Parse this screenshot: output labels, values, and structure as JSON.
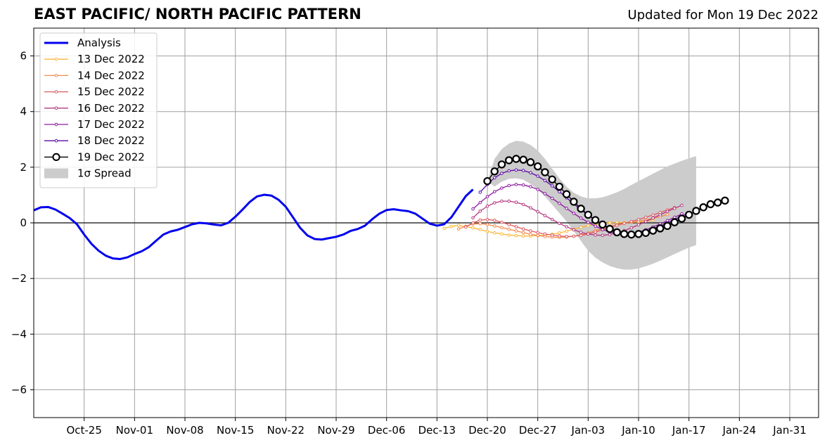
{
  "chart_data": {
    "type": "line",
    "title": "EAST PACIFIC/ NORTH PACIFIC PATTERN",
    "subtitle": "Updated for Mon 19 Dec 2022",
    "xlabel": "",
    "ylabel": "",
    "ylim": [
      -7,
      7
    ],
    "yticks": [
      6,
      4,
      2,
      0,
      -2,
      -4,
      -6
    ],
    "ytick_labels": [
      "6",
      "4",
      "2",
      "0",
      "−2",
      "−4",
      "−6"
    ],
    "xlim": [
      "2022-10-18",
      "2023-02-04"
    ],
    "xticks": [
      "2022-10-25",
      "2022-11-01",
      "2022-11-08",
      "2022-11-15",
      "2022-11-22",
      "2022-11-29",
      "2022-12-06",
      "2022-12-13",
      "2022-12-20",
      "2022-12-27",
      "2023-01-03",
      "2023-01-10",
      "2023-01-17",
      "2023-01-24",
      "2023-01-31"
    ],
    "xtick_labels": [
      "Oct-25",
      "Nov-01",
      "Nov-08",
      "Nov-15",
      "Nov-22",
      "Nov-29",
      "Dec-06",
      "Dec-13",
      "Dec-20",
      "Dec-27",
      "Jan-03",
      "Jan-10",
      "Jan-17",
      "Jan-24",
      "Jan-31"
    ],
    "grid": true,
    "legend_position": "top-left",
    "colors": {
      "analysis": "#0000ee",
      "13 Dec 2022": "#fcb634",
      "14 Dec 2022": "#f4894a",
      "15 Dec 2022": "#dc5a63",
      "16 Dec 2022": "#b43880",
      "17 Dec 2022": "#8e1aa0",
      "18 Dec 2022": "#5b07a6",
      "19 Dec 2022": "#000000",
      "spread": "#cccccc"
    },
    "analysis": {
      "name": "Analysis",
      "start": "2022-10-18",
      "values": [
        0.45,
        0.56,
        0.57,
        0.48,
        0.33,
        0.17,
        -0.05,
        -0.42,
        -0.75,
        -1.0,
        -1.18,
        -1.28,
        -1.3,
        -1.24,
        -1.12,
        -1.02,
        -0.87,
        -0.64,
        -0.42,
        -0.31,
        -0.25,
        -0.15,
        -0.05,
        0.0,
        -0.02,
        -0.06,
        -0.09,
        0.0,
        0.22,
        0.48,
        0.75,
        0.95,
        1.01,
        0.98,
        0.83,
        0.58,
        0.2,
        -0.18,
        -0.45,
        -0.58,
        -0.6,
        -0.55,
        -0.5,
        -0.42,
        -0.29,
        -0.22,
        -0.1,
        0.13,
        0.33,
        0.46,
        0.49,
        0.45,
        0.42,
        0.33,
        0.15,
        -0.03,
        -0.1,
        -0.05,
        0.2,
        0.58,
        0.96,
        1.2
      ]
    },
    "forecasts": [
      {
        "name": "13 Dec 2022",
        "start": "2022-12-14",
        "values": [
          -0.2,
          -0.13,
          -0.09,
          -0.14,
          -0.18,
          -0.24,
          -0.31,
          -0.36,
          -0.4,
          -0.44,
          -0.46,
          -0.47,
          -0.47,
          -0.46,
          -0.44,
          -0.41,
          -0.36,
          -0.3,
          -0.23,
          -0.16,
          -0.1,
          -0.05,
          -0.02,
          0.0,
          0.01,
          0.01,
          0.02,
          0.03,
          0.06,
          0.1
        ]
      },
      {
        "name": "14 Dec 2022",
        "start": "2022-12-16",
        "values": [
          -0.22,
          -0.12,
          -0.04,
          -0.03,
          -0.06,
          -0.11,
          -0.17,
          -0.23,
          -0.29,
          -0.35,
          -0.41,
          -0.45,
          -0.49,
          -0.51,
          -0.52,
          -0.51,
          -0.48,
          -0.43,
          -0.36,
          -0.28,
          -0.2,
          -0.12,
          -0.06,
          -0.02,
          0.02,
          0.06,
          0.1,
          0.16,
          0.22,
          0.3
        ]
      },
      {
        "name": "15 Dec 2022",
        "start": "2022-12-17",
        "values": [
          -0.15,
          0.0,
          0.1,
          0.12,
          0.09,
          0.02,
          -0.06,
          -0.14,
          -0.22,
          -0.29,
          -0.35,
          -0.4,
          -0.44,
          -0.47,
          -0.49,
          -0.48,
          -0.45,
          -0.4,
          -0.33,
          -0.25,
          -0.17,
          -0.09,
          -0.02,
          0.05,
          0.12,
          0.2,
          0.28,
          0.37,
          0.46,
          0.55
        ]
      },
      {
        "name": "16 Dec 2022",
        "start": "2022-12-18",
        "values": [
          0.18,
          0.42,
          0.6,
          0.72,
          0.78,
          0.78,
          0.74,
          0.66,
          0.54,
          0.4,
          0.26,
          0.12,
          -0.02,
          -0.14,
          -0.25,
          -0.34,
          -0.4,
          -0.44,
          -0.45,
          -0.42,
          -0.36,
          -0.28,
          -0.18,
          -0.07,
          0.05,
          0.17,
          0.29,
          0.41,
          0.52,
          0.63
        ]
      },
      {
        "name": "17 Dec 2022",
        "start": "2022-12-18",
        "values": [
          0.5,
          0.73,
          0.94,
          1.12,
          1.25,
          1.34,
          1.38,
          1.36,
          1.3,
          1.2,
          1.05,
          0.88,
          0.7,
          0.52,
          0.34,
          0.17,
          0.02,
          -0.12,
          -0.24,
          -0.33,
          -0.38,
          -0.4,
          -0.38,
          -0.33,
          -0.25,
          -0.15,
          -0.04,
          0.08,
          0.2,
          0.32
        ]
      },
      {
        "name": "18 Dec 2022",
        "start": "2022-12-19",
        "values": [
          1.1,
          1.38,
          1.62,
          1.78,
          1.87,
          1.9,
          1.88,
          1.8,
          1.68,
          1.52,
          1.33,
          1.12,
          0.9,
          0.68,
          0.47,
          0.27,
          0.1,
          -0.06,
          -0.19,
          -0.29,
          -0.35,
          -0.37,
          -0.35,
          -0.29,
          -0.21,
          -0.11,
          0.0,
          0.12,
          0.24,
          0.36
        ]
      },
      {
        "name": "19 Dec 2022",
        "start": "2022-12-20",
        "values": [
          1.5,
          1.85,
          2.1,
          2.25,
          2.3,
          2.27,
          2.18,
          2.03,
          1.82,
          1.56,
          1.3,
          1.03,
          0.76,
          0.51,
          0.29,
          0.1,
          -0.06,
          -0.22,
          -0.34,
          -0.4,
          -0.42,
          -0.4,
          -0.36,
          -0.28,
          -0.2,
          -0.11,
          0.02,
          0.15,
          0.29,
          0.43,
          0.56,
          0.67,
          0.73,
          0.8
        ]
      }
    ],
    "spread": {
      "name": "1σ Spread",
      "start": "2022-12-20",
      "upper": [
        1.5,
        2.3,
        2.65,
        2.85,
        2.95,
        2.92,
        2.8,
        2.6,
        2.3,
        1.95,
        1.6,
        1.3,
        1.08,
        0.95,
        0.88,
        0.88,
        0.92,
        1.0,
        1.1,
        1.22,
        1.36,
        1.5,
        1.63,
        1.77,
        1.9,
        2.03,
        2.13,
        2.23,
        2.32,
        2.4
      ],
      "lower": [
        1.5,
        1.3,
        1.48,
        1.58,
        1.6,
        1.55,
        1.4,
        1.2,
        0.95,
        0.65,
        0.35,
        0.05,
        -0.3,
        -0.65,
        -1.0,
        -1.25,
        -1.42,
        -1.55,
        -1.63,
        -1.68,
        -1.68,
        -1.64,
        -1.56,
        -1.47,
        -1.36,
        -1.24,
        -1.12,
        -1.0,
        -0.89,
        -0.8
      ]
    }
  }
}
